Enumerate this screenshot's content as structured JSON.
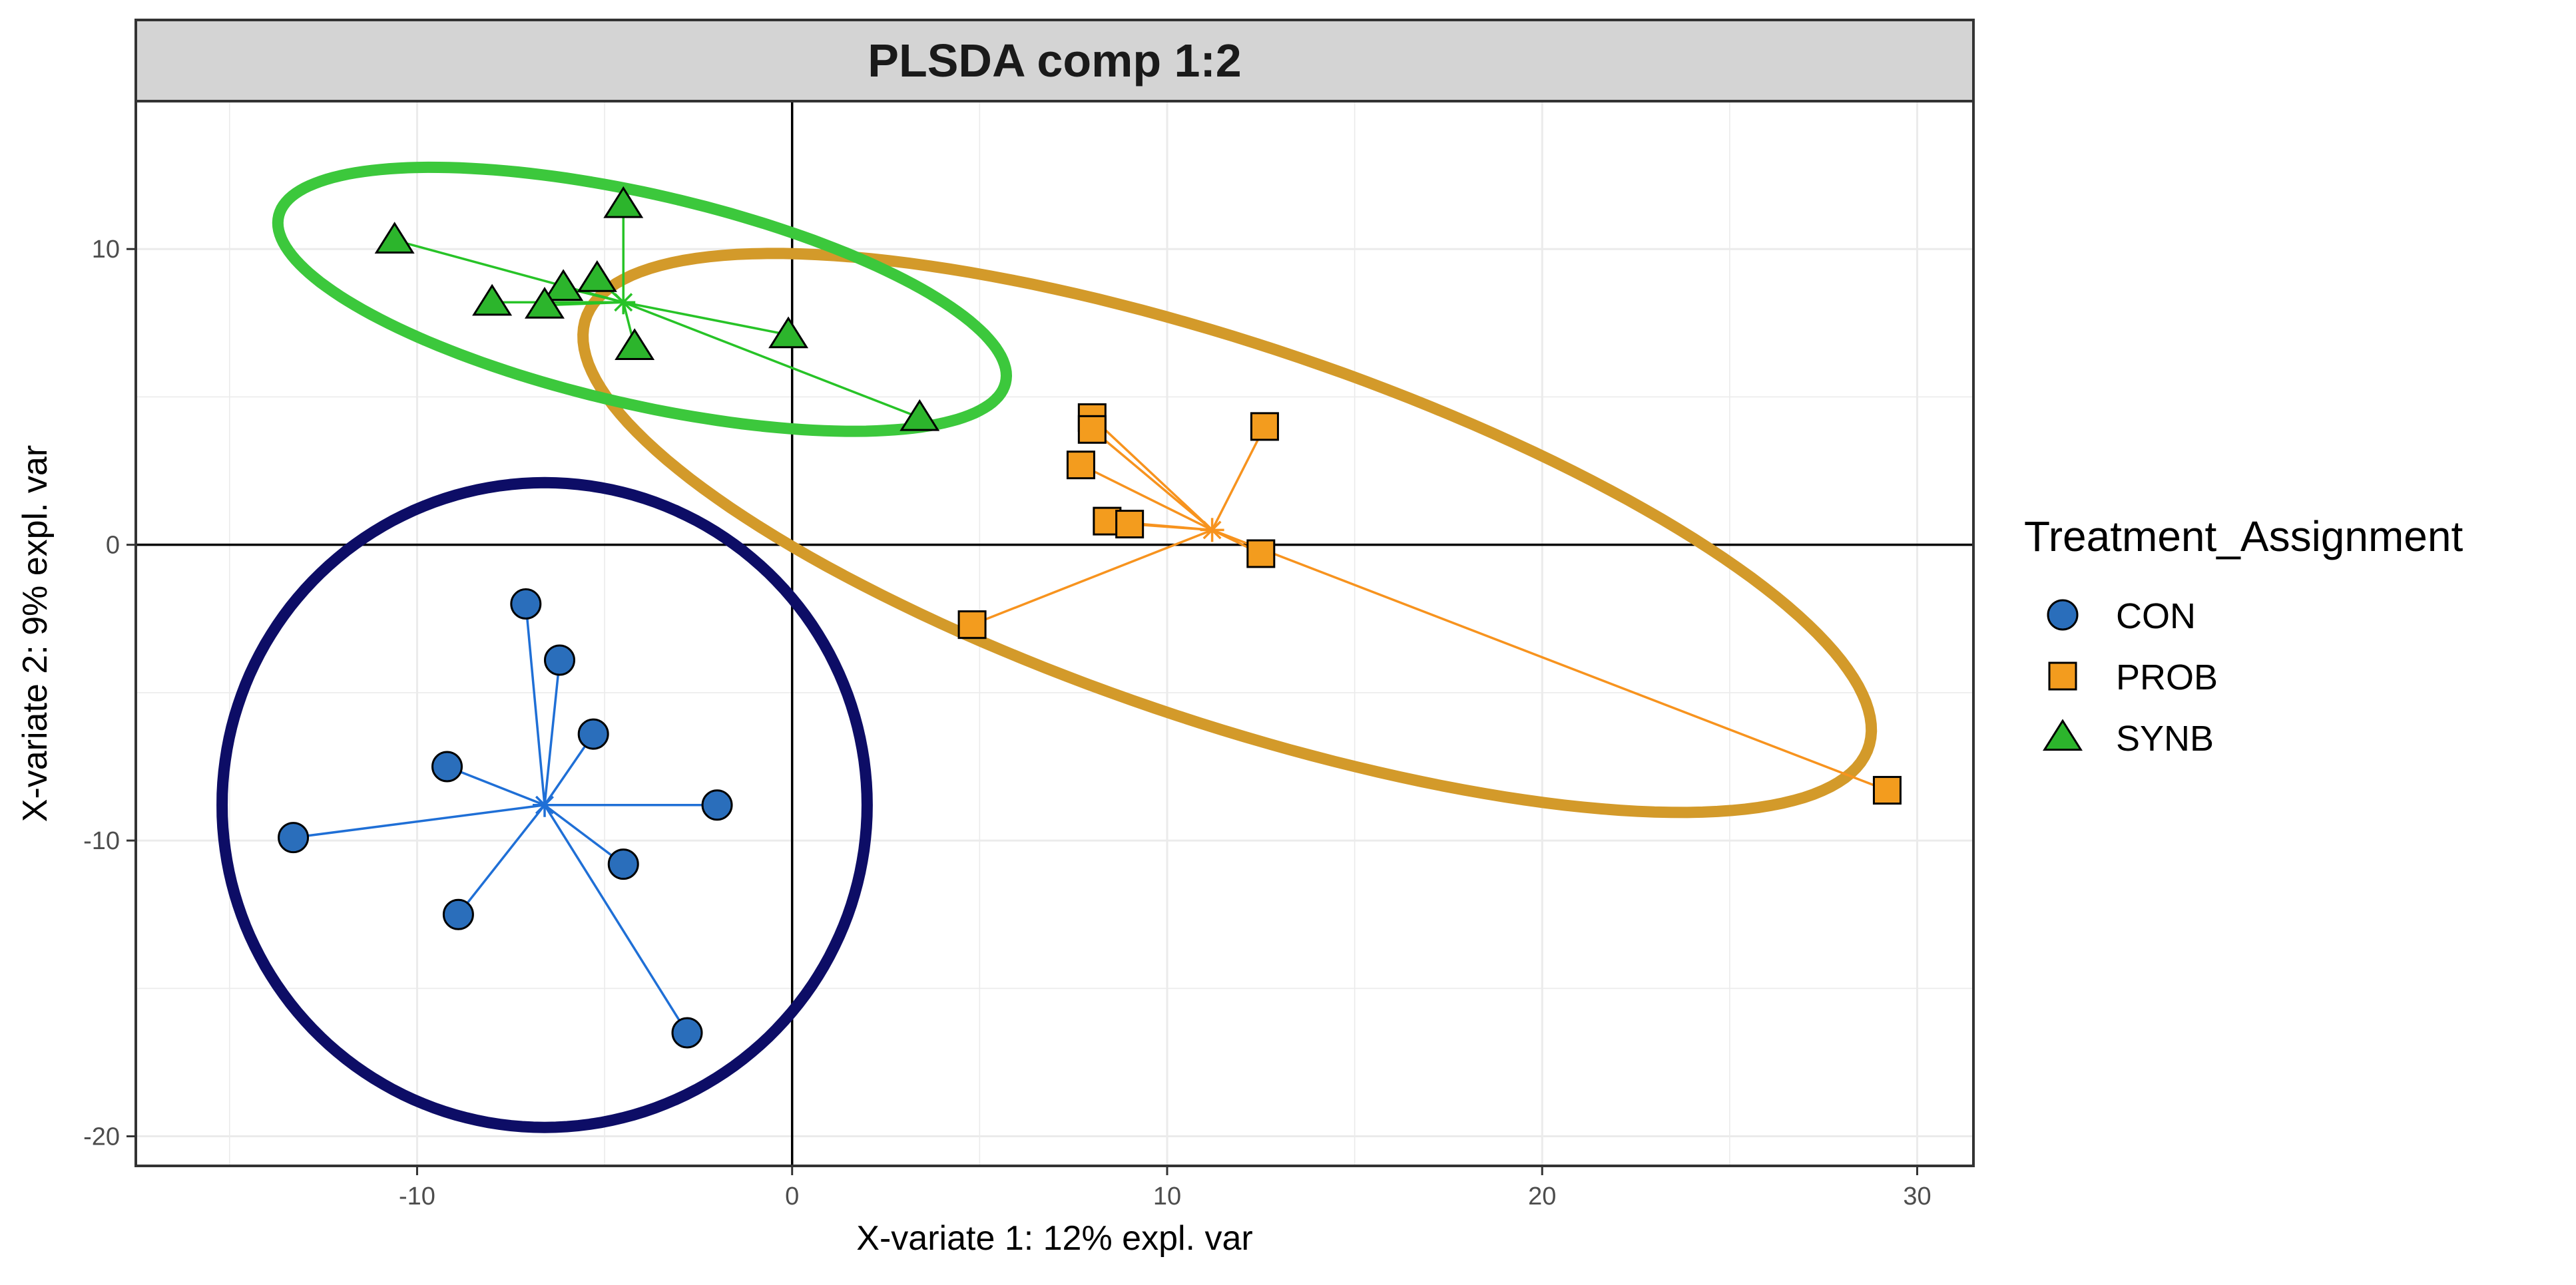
{
  "chart_data": {
    "type": "scatter",
    "title": "PLSDA comp 1:2",
    "xlabel": "X-variate 1: 12% expl. var",
    "ylabel": "X-variate 2: 9% expl. var",
    "xlim": [
      -17.5,
      31.5
    ],
    "ylim": [
      -21,
      15
    ],
    "xticks": [
      -10,
      0,
      10,
      20,
      30
    ],
    "yticks": [
      -20,
      -10,
      0,
      10
    ],
    "xtick_labels": [
      "-10",
      "0",
      "10",
      "20",
      "30"
    ],
    "ytick_labels": [
      "-20",
      "-10",
      "0",
      "10"
    ],
    "grid": true,
    "reference_lines": {
      "x": 0,
      "y": 0
    },
    "legend": {
      "title": "Treatment_Assignment",
      "position": "right"
    },
    "series": [
      {
        "name": "CON",
        "marker": "circle",
        "fill_color": "#2a6ebb",
        "line_color": "#1f6fd6",
        "ellipse_color": "#0d0d66",
        "centroid": [
          -6.6,
          -8.8
        ],
        "points": [
          [
            -7.1,
            -2.0
          ],
          [
            -6.2,
            -3.9
          ],
          [
            -5.3,
            -6.4
          ],
          [
            -9.2,
            -7.5
          ],
          [
            -2.0,
            -8.8
          ],
          [
            -13.3,
            -9.9
          ],
          [
            -4.5,
            -10.8
          ],
          [
            -8.9,
            -12.5
          ],
          [
            -2.8,
            -16.5
          ]
        ],
        "ellipse": {
          "center": [
            -6.6,
            -8.8
          ],
          "semi_axes": [
            8.6,
            10.9
          ],
          "angle_deg": 0
        }
      },
      {
        "name": "PROB",
        "marker": "square",
        "fill_color": "#f39c1e",
        "line_color": "#f7931e",
        "ellipse_color": "#d39a2a",
        "centroid": [
          11.2,
          0.5
        ],
        "points": [
          [
            8.0,
            4.3
          ],
          [
            8.0,
            3.9
          ],
          [
            12.6,
            4.0
          ],
          [
            7.7,
            2.7
          ],
          [
            8.4,
            0.8
          ],
          [
            9.0,
            0.7
          ],
          [
            12.5,
            -0.3
          ],
          [
            4.8,
            -2.7
          ],
          [
            29.2,
            -8.3
          ]
        ],
        "ellipse": {
          "center": [
            11.6,
            0.4
          ],
          "semi_axes": [
            18.6,
            6.2
          ],
          "angle_deg": -24
        }
      },
      {
        "name": "SYNB",
        "marker": "triangle",
        "fill_color": "#2cb52c",
        "line_color": "#27c327",
        "ellipse_color": "#3cc83c",
        "centroid": [
          -4.5,
          8.2
        ],
        "points": [
          [
            -4.5,
            11.5
          ],
          [
            -10.6,
            10.3
          ],
          [
            -5.2,
            9.0
          ],
          [
            -6.1,
            8.7
          ],
          [
            -8.0,
            8.2
          ],
          [
            -6.6,
            8.1
          ],
          [
            -4.2,
            6.7
          ],
          [
            -0.1,
            7.1
          ],
          [
            3.4,
            4.3
          ]
        ],
        "ellipse": {
          "center": [
            -4.0,
            8.3
          ],
          "semi_axes": [
            10.1,
            3.5
          ],
          "angle_deg": -17
        }
      }
    ]
  }
}
